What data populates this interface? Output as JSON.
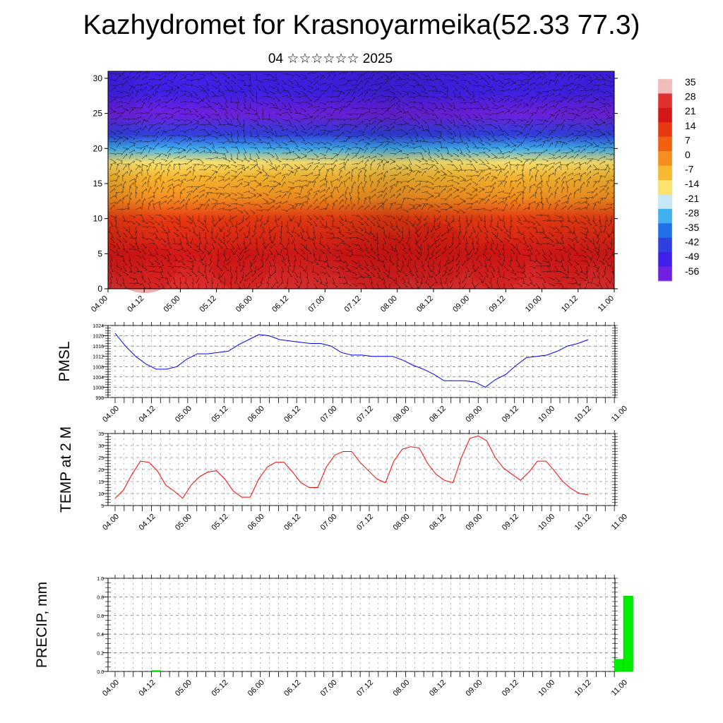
{
  "header": {
    "title": "Kazhydromet for Krasnoyarmeika(52.33 77.3)",
    "subtitle": "04 ☆☆☆☆☆☆ 2025"
  },
  "colors": {
    "pmsl_line": "#0000ff",
    "temp_line": "#ff0000",
    "precip_bar": "#00ee00",
    "vector": "#111111"
  },
  "chart_data": [
    {
      "type": "heatmap",
      "name": "cross_section",
      "x_ticks": [
        "04.00",
        "04.12",
        "05.00",
        "05.12",
        "06.00",
        "06.12",
        "07.00",
        "07.12",
        "08.00",
        "08.12",
        "09.00",
        "09.12",
        "10.00",
        "10.12",
        "11.00"
      ],
      "y_ticks": [
        "0",
        "5",
        "10",
        "15",
        "20",
        "25",
        "30"
      ],
      "ylim": [
        0,
        31
      ],
      "colorbar_labels": [
        "35",
        "28",
        "21",
        "14",
        "7",
        "0",
        "-7",
        "-14",
        "-21",
        "-28",
        "-35",
        "-42",
        "-49",
        "-56"
      ],
      "colorbar_colors": [
        "#f0bcbc",
        "#e03030",
        "#d41818",
        "#e83a10",
        "#f06010",
        "#f59020",
        "#f8b830",
        "#fde470",
        "#c8e8f8",
        "#40b0f0",
        "#2070e8",
        "#3040e0",
        "#4020e8",
        "#7020e0"
      ],
      "temperature_profile": [
        {
          "h": 0,
          "v": 24
        },
        {
          "h": 5,
          "v": 18
        },
        {
          "h": 10,
          "v": 8
        },
        {
          "h": 13,
          "v": 0
        },
        {
          "h": 16,
          "v": -10
        },
        {
          "h": 18,
          "v": -20
        },
        {
          "h": 20,
          "v": -32
        },
        {
          "h": 22,
          "v": -45
        },
        {
          "h": 25,
          "v": -56
        },
        {
          "h": 28,
          "v": -52
        },
        {
          "h": 31,
          "v": -50
        }
      ]
    },
    {
      "type": "line",
      "name": "pmsl",
      "ylabel": "PMSL",
      "x_ticks": [
        "04.00",
        "04.12",
        "05.00",
        "05.12",
        "06.00",
        "06.12",
        "07.00",
        "07.12",
        "08.00",
        "08.12",
        "09.00",
        "09.12",
        "10.00",
        "10.12",
        "11.00"
      ],
      "y_ticks": [
        "996",
        "1000",
        "1004",
        "1008",
        "1012",
        "1016",
        "1020",
        "1024"
      ],
      "ylim": [
        996,
        1024
      ],
      "values": [
        1021,
        1016,
        1012,
        1009,
        1007,
        1007,
        1008,
        1011,
        1013,
        1013,
        1013.5,
        1014,
        1016.5,
        1018.5,
        1020.5,
        1020,
        1018.5,
        1018,
        1017.5,
        1017,
        1017,
        1016,
        1013.5,
        1012.5,
        1012.5,
        1012,
        1012,
        1012,
        1010.5,
        1008.5,
        1007,
        1005,
        1002.5,
        1002.5,
        1002.5,
        1002,
        1000,
        1003,
        1005,
        1008.5,
        1011.5,
        1012,
        1012.5,
        1014,
        1016,
        1017,
        1018.5
      ]
    },
    {
      "type": "line",
      "name": "temp2m",
      "ylabel": "TEMP at 2 M",
      "x_ticks": [
        "04.00",
        "04.12",
        "05.00",
        "05.12",
        "06.00",
        "06.12",
        "07.00",
        "07.12",
        "08.00",
        "08.12",
        "09.00",
        "09.12",
        "10.00",
        "10.12",
        "11.00"
      ],
      "y_ticks": [
        "5",
        "10",
        "15",
        "20",
        "25",
        "30",
        "35"
      ],
      "ylim": [
        5,
        35
      ],
      "values": [
        8,
        11.5,
        18,
        23.5,
        23,
        19.5,
        13.5,
        11,
        8,
        13.5,
        17,
        19,
        19.5,
        16,
        11,
        8.5,
        8.5,
        16,
        21,
        23,
        23,
        19,
        14.5,
        12.5,
        12.5,
        21,
        26,
        27.5,
        27.5,
        23,
        19.5,
        16,
        14.5,
        23.5,
        28.5,
        29.5,
        29,
        22.5,
        18,
        15.5,
        14.5,
        25,
        33,
        34,
        32,
        25,
        20.5,
        18,
        15.5,
        19,
        23.5,
        23.5,
        19.5,
        15,
        12,
        10,
        9.5
      ]
    },
    {
      "type": "bar",
      "name": "precip",
      "ylabel": "PRECIP, mm",
      "x_ticks": [
        "04.00",
        "04.12",
        "05.00",
        "05.12",
        "06.00",
        "06.12",
        "07.00",
        "07.12",
        "08.00",
        "08.12",
        "09.00",
        "09.12",
        "10.00",
        "10.12",
        "11.00"
      ],
      "y_ticks": [
        "0.0",
        "0.2",
        "0.4",
        "0.6",
        "0.8",
        "1.0"
      ],
      "ylim": [
        0,
        1.0
      ],
      "values": [
        0,
        0,
        0,
        0,
        0,
        0.01,
        0,
        0,
        0,
        0,
        0,
        0,
        0,
        0,
        0,
        0,
        0,
        0,
        0,
        0,
        0,
        0,
        0,
        0,
        0,
        0,
        0,
        0,
        0,
        0,
        0,
        0,
        0,
        0,
        0,
        0,
        0,
        0,
        0,
        0,
        0,
        0,
        0,
        0,
        0,
        0,
        0,
        0,
        0,
        0,
        0,
        0,
        0,
        0,
        0,
        0,
        0.13,
        0.81
      ]
    }
  ]
}
